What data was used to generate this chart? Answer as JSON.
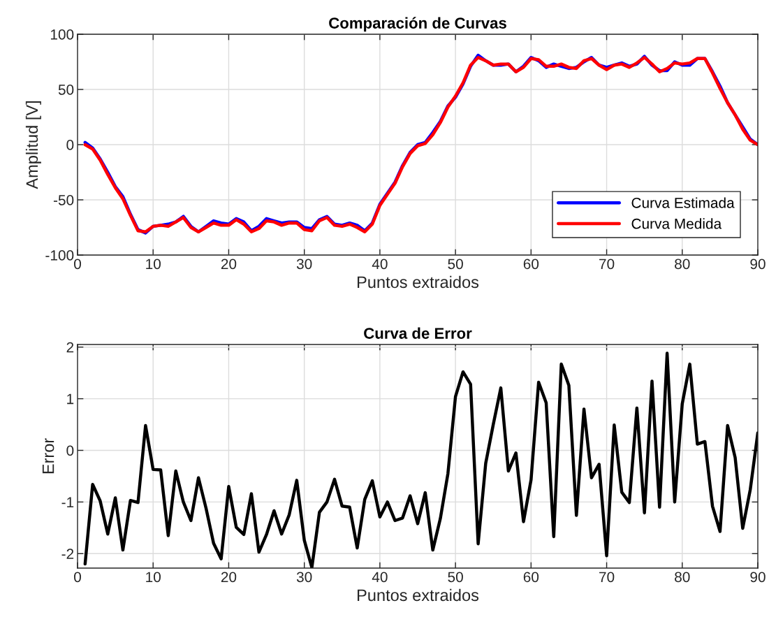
{
  "chart_data": [
    {
      "type": "line",
      "title": "Comparación de Curvas",
      "xlabel": "Puntos extraidos",
      "ylabel": "Amplitud [V]",
      "x": [
        1,
        2,
        3,
        4,
        5,
        6,
        7,
        8,
        9,
        10,
        11,
        12,
        13,
        14,
        15,
        16,
        17,
        18,
        19,
        20,
        21,
        22,
        23,
        24,
        25,
        26,
        27,
        28,
        29,
        30,
        31,
        32,
        33,
        34,
        35,
        36,
        37,
        38,
        39,
        40,
        41,
        42,
        43,
        44,
        45,
        46,
        47,
        48,
        49,
        50,
        51,
        52,
        53,
        54,
        55,
        56,
        57,
        58,
        59,
        60,
        61,
        62,
        63,
        64,
        65,
        66,
        67,
        68,
        69,
        70,
        71,
        72,
        73,
        74,
        75,
        76,
        77,
        78,
        79,
        80,
        81,
        82,
        83,
        84,
        85,
        86,
        87,
        88,
        89,
        90
      ],
      "series": [
        {
          "name": "Curva Estimada",
          "color": "#0000ff",
          "values": [
            2,
            -3,
            -13,
            -25,
            -38,
            -47,
            -63,
            -77,
            -80,
            -74,
            -73,
            -72,
            -70,
            -65,
            -74,
            -79,
            -74,
            -69,
            -71,
            -72,
            -67,
            -70,
            -78,
            -74,
            -67,
            -69,
            -71,
            -70,
            -70,
            -75,
            -76,
            -68,
            -65,
            -72,
            -73,
            -71,
            -73,
            -78,
            -71,
            -54,
            -44,
            -34,
            -19,
            -7,
            0,
            2,
            11,
            21,
            35,
            43,
            55,
            71,
            81,
            76,
            72,
            72,
            73,
            66,
            71,
            79,
            76,
            70,
            73,
            71,
            69,
            70,
            75,
            79,
            72,
            70,
            72,
            74,
            71,
            73,
            80,
            72,
            67,
            67,
            75,
            72,
            72,
            78,
            78,
            66,
            53,
            38,
            27,
            16,
            5,
            0
          ]
        },
        {
          "name": "Curva Medida",
          "color": "#ff0000",
          "values": [
            0,
            -4,
            -14,
            -27,
            -39,
            -49,
            -64,
            -78,
            -79,
            -74,
            -73,
            -74,
            -70,
            -66,
            -75,
            -79,
            -75,
            -71,
            -73,
            -73,
            -68,
            -72,
            -79,
            -76,
            -69,
            -70,
            -73,
            -71,
            -71,
            -77,
            -78,
            -69,
            -66,
            -73,
            -74,
            -72,
            -75,
            -79,
            -72,
            -55,
            -45,
            -35,
            -20,
            -8,
            -1,
            1,
            9,
            20,
            34,
            44,
            56,
            72,
            79,
            76,
            72,
            73,
            73,
            66,
            70,
            78,
            77,
            71,
            71,
            73,
            70,
            69,
            76,
            78,
            72,
            68,
            72,
            73,
            70,
            74,
            79,
            73,
            66,
            69,
            74,
            73,
            74,
            78,
            78,
            65,
            51,
            38,
            27,
            14,
            4,
            0
          ]
        }
      ],
      "xlim": [
        0,
        90
      ],
      "xticks": [
        0,
        10,
        20,
        30,
        40,
        50,
        60,
        70,
        80,
        90
      ],
      "ylim": [
        -100,
        100
      ],
      "yticks": [
        -100,
        -50,
        0,
        50,
        100
      ],
      "grid": true,
      "legend": "bottom right",
      "line_style": "solid",
      "marker": "none"
    },
    {
      "type": "line",
      "title": "Curva de Error",
      "xlabel": "Puntos extraidos",
      "ylabel": "Error",
      "x": [
        1,
        2,
        3,
        4,
        5,
        6,
        7,
        8,
        9,
        10,
        11,
        12,
        13,
        14,
        15,
        16,
        17,
        18,
        19,
        20,
        21,
        22,
        23,
        24,
        25,
        26,
        27,
        28,
        29,
        30,
        31,
        32,
        33,
        34,
        35,
        36,
        37,
        38,
        39,
        40,
        41,
        42,
        43,
        44,
        45,
        46,
        47,
        48,
        49,
        50,
        51,
        52,
        53,
        54,
        55,
        56,
        57,
        58,
        59,
        60,
        61,
        62,
        63,
        64,
        65,
        66,
        67,
        68,
        69,
        70,
        71,
        72,
        73,
        74,
        75,
        76,
        77,
        78,
        79,
        80,
        81,
        82,
        83,
        84,
        85,
        86,
        87,
        88,
        89,
        90
      ],
      "series": [
        {
          "color": "#000000",
          "values": [
            -2.2,
            -0.66,
            -0.98,
            -1.62,
            -0.92,
            -1.93,
            -0.97,
            -1.01,
            0.48,
            -0.37,
            -0.38,
            -1.65,
            -0.4,
            -1.0,
            -1.36,
            -0.53,
            -1.12,
            -1.8,
            -2.1,
            -0.7,
            -1.49,
            -1.63,
            -0.84,
            -1.97,
            -1.63,
            -1.17,
            -1.62,
            -1.25,
            -0.58,
            -1.74,
            -2.27,
            -1.2,
            -1.0,
            -0.56,
            -1.08,
            -1.1,
            -1.89,
            -0.95,
            -0.59,
            -1.29,
            -1.0,
            -1.36,
            -1.31,
            -0.88,
            -1.42,
            -0.82,
            -1.93,
            -1.32,
            -0.45,
            1.04,
            1.52,
            1.28,
            -1.81,
            -0.25,
            0.5,
            1.21,
            -0.4,
            -0.05,
            -1.38,
            -0.57,
            1.32,
            0.92,
            -1.67,
            1.67,
            1.26,
            -1.26,
            0.8,
            -0.53,
            -0.27,
            -2.04,
            0.49,
            -0.81,
            -1.01,
            0.82,
            -1.21,
            1.34,
            -1.1,
            1.88,
            -1.0,
            0.9,
            1.67,
            0.12,
            0.17,
            -1.08,
            -1.57,
            0.48,
            -0.14,
            -1.51,
            -0.76,
            0.34
          ]
        }
      ],
      "xlim": [
        0,
        90
      ],
      "xticks": [
        0,
        10,
        20,
        30,
        40,
        50,
        60,
        70,
        80,
        90
      ],
      "ylim": [
        -2.28,
        2.05
      ],
      "yticks": [
        -2,
        -1,
        0,
        1,
        2
      ],
      "grid": true,
      "line_style": "solid",
      "marker": "none"
    }
  ]
}
